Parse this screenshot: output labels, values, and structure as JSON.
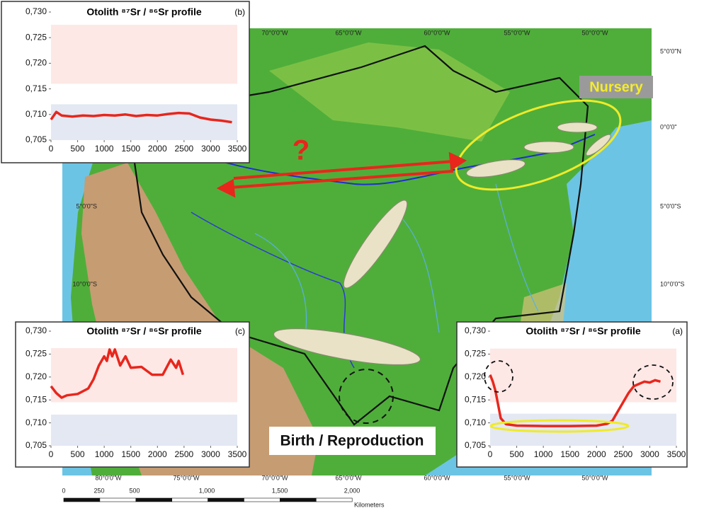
{
  "chart_data": [
    {
      "type": "line",
      "title": "Otolith ⁸⁷Sr / ⁸⁶Sr profile",
      "panel": "(b)",
      "x": [
        0,
        100,
        200,
        400,
        600,
        800,
        1000,
        1200,
        1400,
        1600,
        1800,
        2000,
        2200,
        2400,
        2600,
        2800,
        3000,
        3200,
        3400
      ],
      "values": [
        0.709,
        0.7105,
        0.7098,
        0.7096,
        0.7098,
        0.7097,
        0.7099,
        0.7098,
        0.71,
        0.7097,
        0.7099,
        0.7098,
        0.7101,
        0.7103,
        0.7102,
        0.7094,
        0.709,
        0.7088,
        0.7085
      ],
      "color": "#e8261c",
      "bands": [
        {
          "from": 0.716,
          "to": 0.7275,
          "color": "#fde8e6"
        },
        {
          "from": 0.705,
          "to": 0.712,
          "color": "#e3e8f3"
        }
      ],
      "xlim": [
        0,
        3500
      ],
      "xticks": [
        0,
        500,
        1000,
        1500,
        2000,
        2500,
        3000,
        3500
      ],
      "ylim": [
        0.705,
        0.73
      ],
      "yticks": [
        {
          "value": 0.705,
          "label": "0,705"
        },
        {
          "value": 0.71,
          "label": "0,710"
        },
        {
          "value": 0.715,
          "label": "0,715"
        },
        {
          "value": 0.72,
          "label": "0,720"
        },
        {
          "value": 0.725,
          "label": "0,725"
        },
        {
          "value": 0.73,
          "label": "0,730"
        }
      ]
    },
    {
      "type": "line",
      "title": "Otolith ⁸⁷Sr / ⁸⁶Sr profile",
      "panel": "(c)",
      "x": [
        0,
        100,
        200,
        300,
        500,
        700,
        800,
        900,
        1000,
        1050,
        1100,
        1150,
        1200,
        1300,
        1400,
        1500,
        1700,
        1900,
        2100,
        2250,
        2350,
        2400,
        2480
      ],
      "values": [
        0.718,
        0.7165,
        0.7155,
        0.716,
        0.7163,
        0.7175,
        0.7195,
        0.7225,
        0.7245,
        0.7235,
        0.726,
        0.7245,
        0.726,
        0.7225,
        0.7245,
        0.722,
        0.7222,
        0.7205,
        0.7205,
        0.7238,
        0.722,
        0.7235,
        0.7205
      ],
      "color": "#e8261c",
      "bands": [
        {
          "from": 0.7145,
          "to": 0.7263,
          "color": "#fde8e6"
        },
        {
          "from": 0.705,
          "to": 0.7118,
          "color": "#e3e8f3"
        }
      ],
      "xlim": [
        0,
        3500
      ],
      "xticks": [
        0,
        500,
        1000,
        1500,
        2000,
        2500,
        3000,
        3500
      ],
      "ylim": [
        0.705,
        0.73
      ],
      "yticks": [
        {
          "value": 0.705,
          "label": "0,705"
        },
        {
          "value": 0.71,
          "label": "0,710"
        },
        {
          "value": 0.715,
          "label": "0,715"
        },
        {
          "value": 0.72,
          "label": "0,720"
        },
        {
          "value": 0.725,
          "label": "0,725"
        },
        {
          "value": 0.73,
          "label": "0,730"
        }
      ]
    },
    {
      "type": "line",
      "title": "Otolith ⁸⁷Sr / ⁸⁶Sr profile",
      "panel": "(a)",
      "x": [
        0,
        50,
        100,
        200,
        300,
        500,
        1000,
        1500,
        2000,
        2200,
        2300,
        2400,
        2500,
        2600,
        2700,
        2800,
        2900,
        3000,
        3100,
        3200
      ],
      "values": [
        0.7205,
        0.719,
        0.717,
        0.711,
        0.7097,
        0.7094,
        0.7093,
        0.7093,
        0.7094,
        0.7098,
        0.7105,
        0.7125,
        0.7145,
        0.7165,
        0.718,
        0.7185,
        0.719,
        0.7188,
        0.7193,
        0.719
      ],
      "color": "#e8261c",
      "bands": [
        {
          "from": 0.7145,
          "to": 0.7262,
          "color": "#fde8e6"
        },
        {
          "from": 0.705,
          "to": 0.712,
          "color": "#e3e8f3"
        }
      ],
      "xlim": [
        0,
        3500
      ],
      "xticks": [
        0,
        500,
        1000,
        1500,
        2000,
        2500,
        3000,
        3500
      ],
      "ylim": [
        0.705,
        0.73
      ],
      "yticks": [
        {
          "value": 0.705,
          "label": "0,705"
        },
        {
          "value": 0.71,
          "label": "0,710"
        },
        {
          "value": 0.715,
          "label": "0,715"
        },
        {
          "value": 0.72,
          "label": "0,720"
        },
        {
          "value": 0.725,
          "label": "0,725"
        },
        {
          "value": 0.73,
          "label": "0,730"
        }
      ]
    }
  ],
  "map": {
    "lon_top": [
      "70°0'0\"W",
      "65°0'0\"W",
      "60°0'0\"W",
      "55°0'0\"W",
      "50°0'0\"W"
    ],
    "lat_right": [
      "5°0'0\"N",
      "0°0'0\"",
      "5°0'0\"S",
      "10°0'0\"S"
    ],
    "lat_left": [
      "5°0'0\"S",
      "10°0'0\"S"
    ],
    "lon_bottom": [
      "80°0'0\"W",
      "75°0'0\"W",
      "70°0'0\"W",
      "65°0'0\"W",
      "60°0'0\"W",
      "55°0'0\"W",
      "50°0'0\"W"
    ],
    "nursery": "Nursery",
    "birth": "Birth / Reproduction",
    "question": "?"
  },
  "scale": {
    "ticks": [
      "0",
      "250",
      "500",
      "1,000",
      "1,500",
      "2,000"
    ],
    "unit": "Kilometers"
  }
}
